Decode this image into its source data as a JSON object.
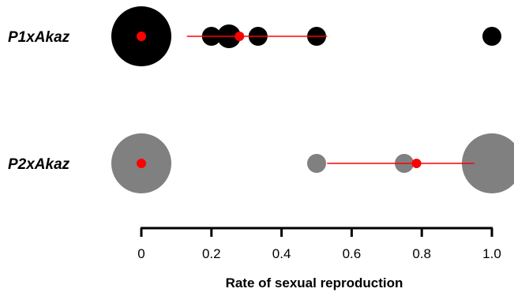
{
  "chart_data": {
    "type": "scatter",
    "xlabel": "Rate of sexual reproduction",
    "xlim": [
      0,
      1
    ],
    "xticks": [
      0,
      0.2,
      0.4,
      0.6,
      0.8,
      1.0
    ],
    "xtick_labels": [
      "0",
      "0.2",
      "0.4",
      "0.6",
      "0.8",
      "1.0"
    ],
    "groups": [
      {
        "label": "P1xAkaz",
        "color": "#000000",
        "points": [
          {
            "x": 0,
            "size": "large"
          },
          {
            "x": 0.2,
            "size": "small"
          },
          {
            "x": 0.25,
            "size": "medium"
          },
          {
            "x": 0.333,
            "size": "small"
          },
          {
            "x": 0.5,
            "size": "small"
          },
          {
            "x": 1.0,
            "size": "small"
          }
        ],
        "mean": 0.28,
        "interval": [
          0.13,
          0.53
        ],
        "extra_mean_at": 0
      },
      {
        "label": "P2xAkaz",
        "color": "#808080",
        "points": [
          {
            "x": 0,
            "size": "large"
          },
          {
            "x": 0.5,
            "size": "small"
          },
          {
            "x": 0.75,
            "size": "small"
          },
          {
            "x": 1.0,
            "size": "large"
          }
        ],
        "mean": 0.785,
        "interval": [
          0.53,
          0.95
        ],
        "extra_mean_at": 0
      }
    ],
    "mean_color": "#ff0000",
    "grid": false
  }
}
